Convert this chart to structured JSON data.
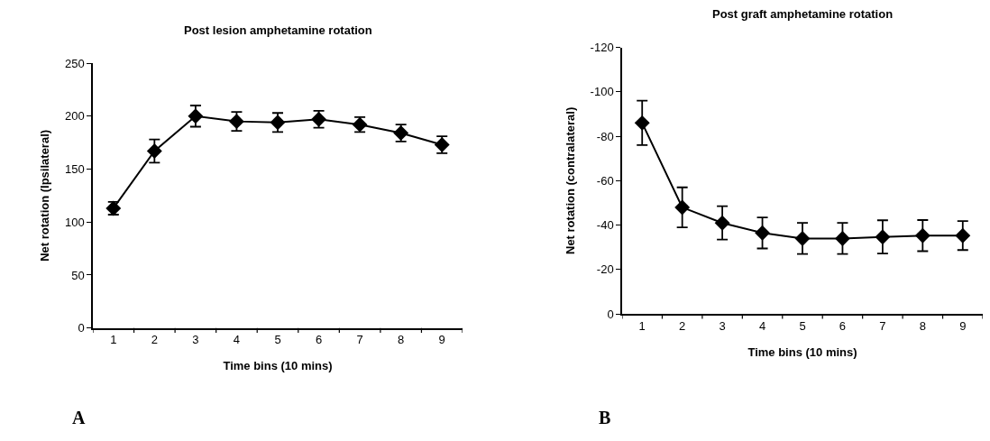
{
  "chart_data": [
    {
      "type": "line",
      "title": "Post lesion amphetamine rotation",
      "xlabel": "Time bins (10 mins)",
      "ylabel": "Net rotation (Ipsilateral)",
      "categories": [
        "1",
        "2",
        "3",
        "4",
        "5",
        "6",
        "7",
        "8",
        "9"
      ],
      "series": [
        {
          "color": "#000000",
          "values": [
            113,
            167,
            200,
            195,
            194,
            197,
            192,
            184,
            173
          ],
          "errors": [
            6,
            11,
            10,
            9,
            9,
            8,
            7,
            8,
            8
          ]
        }
      ],
      "ylim": [
        0,
        250
      ],
      "yticks": [
        0,
        50,
        100,
        150,
        200,
        250
      ],
      "marker": "diamond",
      "line_style": "solid",
      "annotations": [
        "A"
      ]
    },
    {
      "type": "line",
      "title": "Post graft amphetamine rotation",
      "xlabel": "Time bins (10 mins)",
      "ylabel": "Net rotation (contralateral)",
      "categories": [
        "1",
        "2",
        "3",
        "4",
        "5",
        "6",
        "7",
        "8",
        "9"
      ],
      "series": [
        {
          "color": "#000000",
          "values": [
            -86,
            -48,
            -41,
            -36.5,
            -34,
            -34,
            -34.7,
            -35.3,
            -35.3
          ],
          "errors": [
            10,
            9,
            7.5,
            7,
            7,
            7,
            7.5,
            7,
            6.5
          ]
        }
      ],
      "ylim": [
        0,
        -120
      ],
      "yticks": [
        0,
        -20,
        -40,
        -60,
        -80,
        -100,
        -120
      ],
      "marker": "diamond",
      "line_style": "solid",
      "annotations": [
        "B"
      ]
    }
  ]
}
